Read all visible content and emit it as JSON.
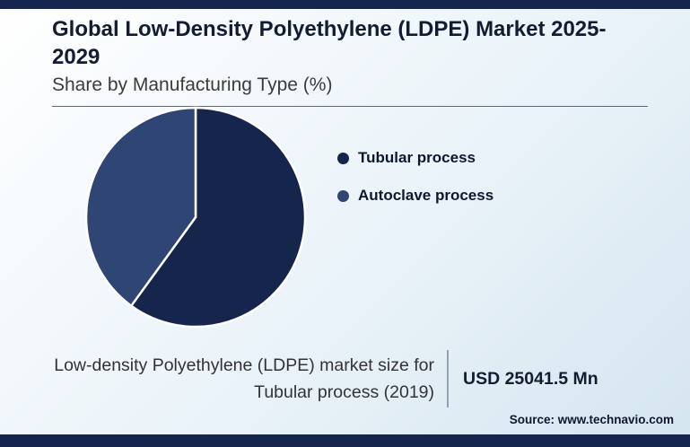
{
  "header": {
    "title": "Global Low-Density Polyethylene (LDPE) Market 2025-2029",
    "subtitle": "Share by Manufacturing Type (%)"
  },
  "chart_data": {
    "type": "pie",
    "title": "Global Low-Density Polyethylene (LDPE) Market 2025-2029",
    "subtitle": "Share by Manufacturing Type (%)",
    "categories": [
      "Tubular process",
      "Autoclave process"
    ],
    "values": [
      60,
      40
    ],
    "unit": "%",
    "colors": [
      "#16254c",
      "#2f4573"
    ],
    "legend_position": "right",
    "start_angle_deg": 0,
    "slice_border_color": "#ffffff"
  },
  "footer": {
    "caption": "Low-density Polyethylene (LDPE) market size for Tubular process (2019)",
    "value": "USD 25041.5 Mn",
    "source": "Source: www.technavio.com"
  },
  "colors": {
    "accent_navy": "#16254c",
    "accent_blue": "#2f4573",
    "title_text": "#121c33",
    "body_text": "#333333"
  }
}
